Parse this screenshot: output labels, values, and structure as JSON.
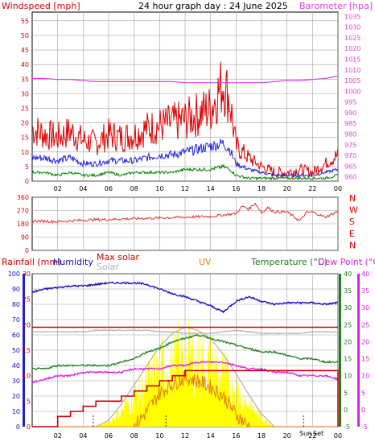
{
  "title": "24 hour graph day : 24 June 2025",
  "colors": {
    "windspeed": "#e00000",
    "wind_avg": "#2020e0",
    "wind_low": "#008000",
    "barometer": "#e040e0",
    "direction": "#e03030",
    "rainfall": "#cc0000",
    "humidity": "#1010c0",
    "max_solar": "#cc0000",
    "solar": "#b0b0b0",
    "uv": "#e88010",
    "uv_fill": "#ffff00",
    "temperature": "#208020",
    "dew_point": "#e020e0",
    "grid": "#a0a0a0"
  },
  "chart_data": [
    {
      "type": "line",
      "labels": {
        "left": "Windspeed [mph]",
        "right": "Barometer [hpa]"
      },
      "x_ticks": [
        "02",
        "04",
        "06",
        "08",
        "10",
        "12",
        "14",
        "16",
        "18",
        "20",
        "22",
        "00"
      ],
      "left_ticks": [
        "0",
        "5",
        "10",
        "15",
        "20",
        "25",
        "30",
        "35",
        "40",
        "45",
        "50",
        "55"
      ],
      "right_ticks": [
        "960",
        "965",
        "970",
        "975",
        "980",
        "985",
        "990",
        "995",
        "1000",
        "1005",
        "1010",
        "1015",
        "1020",
        "1025",
        "1030",
        "1035"
      ],
      "ylim_left": [
        0,
        58
      ],
      "ylim_right": [
        958,
        1037
      ],
      "x": [
        0,
        1,
        2,
        3,
        4,
        5,
        6,
        7,
        8,
        9,
        10,
        11,
        12,
        13,
        14,
        15,
        15.5,
        16,
        17,
        18,
        19,
        20,
        21,
        22,
        23,
        24
      ],
      "series": [
        {
          "name": "Windspeed",
          "axis": "left",
          "values": [
            18,
            16,
            15,
            17,
            14,
            13,
            16,
            15,
            16,
            18,
            19,
            20,
            21,
            23,
            25,
            34,
            28,
            12,
            8,
            5,
            3,
            3,
            4,
            3,
            6,
            9
          ]
        },
        {
          "name": "Windspeed avg",
          "axis": "left",
          "values": [
            8,
            8,
            7,
            8,
            6,
            6,
            7,
            7,
            7,
            8,
            9,
            9,
            10,
            11,
            12,
            13,
            11,
            6,
            4,
            3,
            2,
            2,
            2,
            2,
            3,
            4
          ]
        },
        {
          "name": "Windspeed low",
          "axis": "left",
          "values": [
            3,
            3,
            2,
            3,
            2,
            2,
            3,
            2,
            3,
            3,
            3,
            3,
            4,
            4,
            4,
            5,
            4,
            2,
            1,
            1,
            1,
            1,
            1,
            1,
            1,
            2
          ]
        },
        {
          "name": "Barometer",
          "axis": "right",
          "values": [
            1006,
            1006,
            1005.5,
            1005.5,
            1005,
            1004.5,
            1004.5,
            1004.5,
            1004.5,
            1004.5,
            1004.5,
            1004.5,
            1004,
            1004,
            1004,
            1004,
            1004,
            1004,
            1004,
            1004,
            1004.5,
            1005,
            1005,
            1005.5,
            1006,
            1007
          ]
        }
      ]
    },
    {
      "type": "scatter",
      "name": "wind direction",
      "left_ticks": [
        "0",
        "90",
        "180",
        "270",
        "360"
      ],
      "right_labels": [
        "N",
        "W",
        "S",
        "E",
        "N"
      ],
      "ylim": [
        0,
        360
      ],
      "x": [
        0,
        2,
        4,
        6,
        8,
        10,
        12,
        14,
        15,
        16,
        16.5,
        17,
        17.5,
        18,
        18.5,
        19,
        20,
        21,
        21.5,
        22,
        23,
        24
      ],
      "values": [
        200,
        195,
        205,
        210,
        215,
        220,
        225,
        230,
        240,
        250,
        300,
        280,
        320,
        255,
        290,
        260,
        260,
        200,
        255,
        260,
        225,
        265
      ]
    },
    {
      "type": "line",
      "labels": {
        "rainfall": "Rainfall (mm)",
        "humidity": "Humidity",
        "max_solar": "Max solar",
        "solar": "Solar",
        "uv": "UV",
        "temperature": "Temperature (°C)",
        "dew_point": "Dew Point (°C)"
      },
      "x_ticks": [
        "02",
        "04",
        "06",
        "08",
        "10",
        "12",
        "14",
        "16",
        "18",
        "20",
        "22",
        "00"
      ],
      "sun_labels": {
        "sunrise": "Sun",
        "sunset": "Set"
      },
      "humidity_ticks": [
        "0",
        "10",
        "20",
        "30",
        "40",
        "50",
        "60",
        "70",
        "80",
        "90",
        "100"
      ],
      "rainfall_ticks": [
        "0",
        "5",
        "10",
        "15",
        "20",
        "25",
        "30"
      ],
      "temp_ticks": [
        "-5",
        "0",
        "5",
        "10",
        "15",
        "20",
        "25",
        "30",
        "35",
        "40"
      ],
      "ylim_humidity": [
        0,
        100
      ],
      "ylim_temp": [
        -5,
        40
      ],
      "x": [
        0,
        1,
        2,
        3,
        4,
        5,
        6,
        7,
        8,
        9,
        10,
        11,
        12,
        13,
        14,
        15,
        16,
        17,
        18,
        19,
        20,
        21,
        22,
        23,
        24
      ],
      "series": [
        {
          "name": "Humidity",
          "values": [
            88,
            90,
            91,
            92,
            92,
            93,
            94,
            94,
            94,
            93,
            90,
            87,
            85,
            82,
            79,
            75,
            82,
            85,
            82,
            80,
            81,
            81,
            81,
            80,
            81
          ]
        },
        {
          "name": "Max solar",
          "values": [
            65,
            65,
            65,
            65,
            65,
            65,
            65,
            65,
            65,
            65,
            65,
            65,
            65,
            65,
            65,
            65,
            65,
            65,
            65,
            65,
            65,
            65,
            65,
            65,
            65
          ]
        },
        {
          "name": "Solar",
          "values": [
            62,
            62,
            62,
            62,
            62,
            63,
            63,
            63,
            63,
            63,
            62,
            62,
            61,
            61,
            61,
            62,
            63,
            62,
            61,
            61,
            61,
            61,
            62,
            62,
            62
          ]
        },
        {
          "name": "Temperature",
          "values": [
            12,
            12,
            13,
            13,
            13,
            13,
            13,
            14,
            15,
            17,
            18,
            20,
            21,
            22,
            21,
            20,
            19,
            18,
            17,
            17,
            16,
            15,
            15,
            14,
            14
          ]
        },
        {
          "name": "Dew Point",
          "values": [
            8,
            9,
            10,
            10,
            11,
            11,
            11,
            11,
            12,
            12,
            12,
            13,
            13,
            14,
            14,
            14,
            13,
            12,
            12,
            11,
            11,
            10,
            10,
            10,
            9
          ]
        },
        {
          "name": "UV",
          "values": [
            0,
            0,
            0,
            0,
            0,
            0,
            0,
            0,
            0,
            10,
            22,
            28,
            32,
            30,
            26,
            20,
            8,
            0,
            0,
            0,
            0,
            0,
            0,
            0,
            0
          ]
        },
        {
          "name": "Rainfall",
          "values": [
            0,
            0,
            2,
            3,
            4,
            5,
            5,
            6,
            7,
            8,
            9,
            10,
            11,
            11,
            11,
            11,
            11,
            11,
            11,
            11,
            11,
            11,
            11,
            11,
            0
          ]
        }
      ],
      "solar_curve": [
        0,
        0,
        0,
        0,
        0,
        0,
        4,
        14,
        26,
        38,
        50,
        58,
        62,
        60,
        55,
        45,
        33,
        20,
        8,
        0,
        0,
        0,
        0,
        0,
        0
      ]
    }
  ]
}
